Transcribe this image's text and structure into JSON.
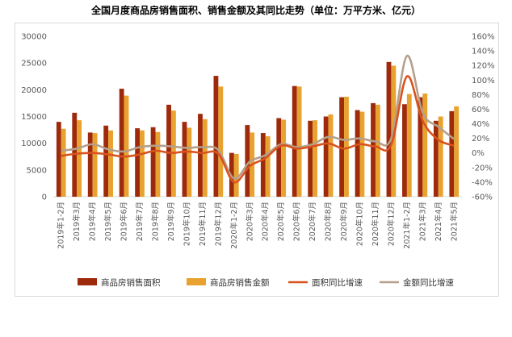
{
  "chart_data": {
    "type": "bar",
    "title": "全国月度商品房销售面积、销售金额及其同比走势（单位：万平方米、亿元）",
    "categories": [
      "2019年1-2月",
      "2019年3月",
      "2019年4月",
      "2019年5月",
      "2019年6月",
      "2019年7月",
      "2019年8月",
      "2019年9月",
      "2019年10月",
      "2019年11月",
      "2019年12月",
      "2020年1-2月",
      "2020年3月",
      "2020年4月",
      "2020年5月",
      "2020年6月",
      "2020年7月",
      "2020年8月",
      "2020年9月",
      "2020年10月",
      "2020年11月",
      "2020年12月",
      "2021年1-2月",
      "2021年3月",
      "2021年4月",
      "2021年5月"
    ],
    "y_left": {
      "ylim": [
        0,
        30000
      ],
      "ticks": [
        "0",
        "5000",
        "10000",
        "15000",
        "20000",
        "25000",
        "30000"
      ]
    },
    "y_right": {
      "ylim": [
        -60,
        160
      ],
      "ticks": [
        "-60%",
        "-40%",
        "-20%",
        "0%",
        "20%",
        "40%",
        "60%",
        "80%",
        "100%",
        "120%",
        "140%",
        "160%"
      ]
    },
    "series": [
      {
        "name": "商品房销售面积",
        "kind": "bar",
        "axis": "left",
        "color": "#9e2a0c",
        "values": [
          14000,
          15700,
          12000,
          13300,
          20200,
          12800,
          13000,
          17200,
          14000,
          15500,
          22600,
          8200,
          13400,
          11900,
          14700,
          20700,
          14200,
          15000,
          18600,
          16200,
          17500,
          25200,
          17300,
          18600,
          14200,
          16000
        ]
      },
      {
        "name": "商品房销售金额",
        "kind": "bar",
        "axis": "left",
        "color": "#e8a22f",
        "values": [
          12700,
          14300,
          11900,
          12400,
          18900,
          12400,
          12100,
          16100,
          12900,
          14500,
          20600,
          8000,
          12000,
          11300,
          14400,
          20600,
          14300,
          15400,
          18700,
          15900,
          17200,
          24500,
          19200,
          19300,
          15000,
          16900
        ]
      },
      {
        "name": "面积同比增速",
        "kind": "line",
        "axis": "right",
        "color": "#d9531e",
        "values": [
          -4,
          -1,
          0,
          -2,
          -5,
          -2,
          3,
          0,
          2,
          0,
          -1,
          -40,
          -18,
          -7,
          10,
          6,
          9,
          13,
          6,
          12,
          9,
          11,
          105,
          44,
          18,
          10
        ]
      },
      {
        "name": "金额同比增速",
        "kind": "line",
        "axis": "right",
        "color": "#b4a08c",
        "values": [
          3,
          6,
          12,
          5,
          2,
          8,
          10,
          9,
          7,
          8,
          4,
          -35,
          -12,
          -3,
          12,
          8,
          12,
          22,
          18,
          20,
          16,
          20,
          133,
          55,
          36,
          19
        ]
      }
    ],
    "legend": "bottom",
    "grid": false
  }
}
